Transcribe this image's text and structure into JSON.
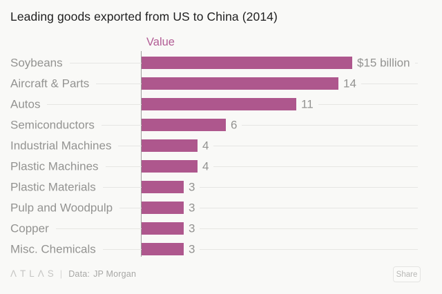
{
  "chart_data": {
    "type": "bar",
    "orientation": "horizontal",
    "title": "Leading goods exported from US to China (2014)",
    "legend_label": "Value",
    "legend_position": "top",
    "categories": [
      "Soybeans",
      "Aircraft & Parts",
      "Autos",
      "Semiconductors",
      "Industrial Machines",
      "Plastic Machines",
      "Plastic Materials",
      "Pulp and Woodpulp",
      "Copper",
      "Misc. Chemicals"
    ],
    "values": [
      15,
      14,
      11,
      6,
      4,
      4,
      3,
      3,
      3,
      3
    ],
    "value_labels": [
      "$15 billion",
      "14",
      "11",
      "6",
      "4",
      "4",
      "3",
      "3",
      "3",
      "3"
    ],
    "unit": "billion USD",
    "xlim": [
      0,
      15
    ],
    "grid": "horizontal row leader lines"
  },
  "colors": {
    "bar": "#ae578d",
    "legend_text": "#b25d95",
    "background": "#f9f9f7",
    "axis_line": "#9d9d9b",
    "label_gray": "#939391"
  },
  "footer": {
    "logo": "ΛTLΛS",
    "separator": "|",
    "source_label": "Data:",
    "source_value": "JP Morgan",
    "share_label": "Share"
  }
}
